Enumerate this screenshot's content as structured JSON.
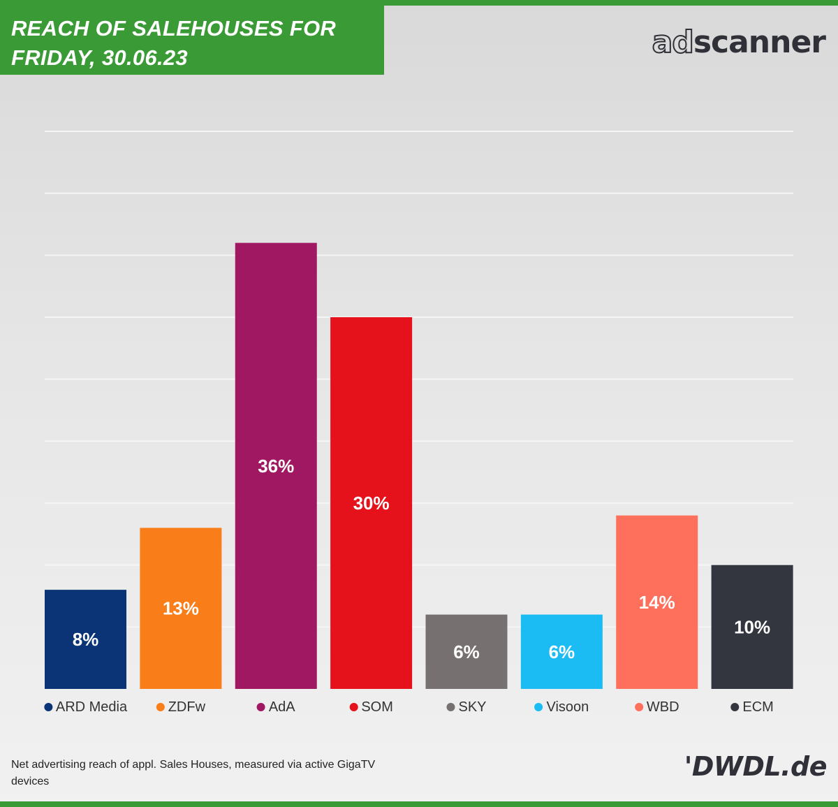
{
  "header": {
    "title_line1": "REACH OF SALEHOUSES FOR",
    "title_line2": "FRIDAY, 30.06.23",
    "logo_part1": "ad",
    "logo_part2": "scanner"
  },
  "footer": {
    "note": "Net advertising reach of appl. Sales Houses, measured via active GigaTV devices",
    "brand": "'DWDL.de"
  },
  "colors": {
    "brand_green": "#3a9a35",
    "gridline": "#f5f5f5",
    "label": "#ffffff"
  },
  "chart_data": {
    "type": "bar",
    "title": "REACH OF SALEHOUSES FOR FRIDAY, 30.06.23",
    "categories": [
      "ARD Media",
      "ZDFw",
      "AdA",
      "SOM",
      "SKY",
      "Visoon",
      "WBD",
      "ECM"
    ],
    "values": [
      8,
      13,
      36,
      30,
      6,
      6,
      14,
      10
    ],
    "value_labels": [
      "8%",
      "13%",
      "36%",
      "30%",
      "6%",
      "6%",
      "14%",
      "10%"
    ],
    "bar_colors": [
      "#0b3476",
      "#f97d19",
      "#a11862",
      "#e5111b",
      "#777070",
      "#1bbcf3",
      "#fe705b",
      "#33363f"
    ],
    "ylabel": "",
    "xlabel": "",
    "ylim": [
      0,
      45
    ],
    "grid": true,
    "legend": "bottom"
  }
}
